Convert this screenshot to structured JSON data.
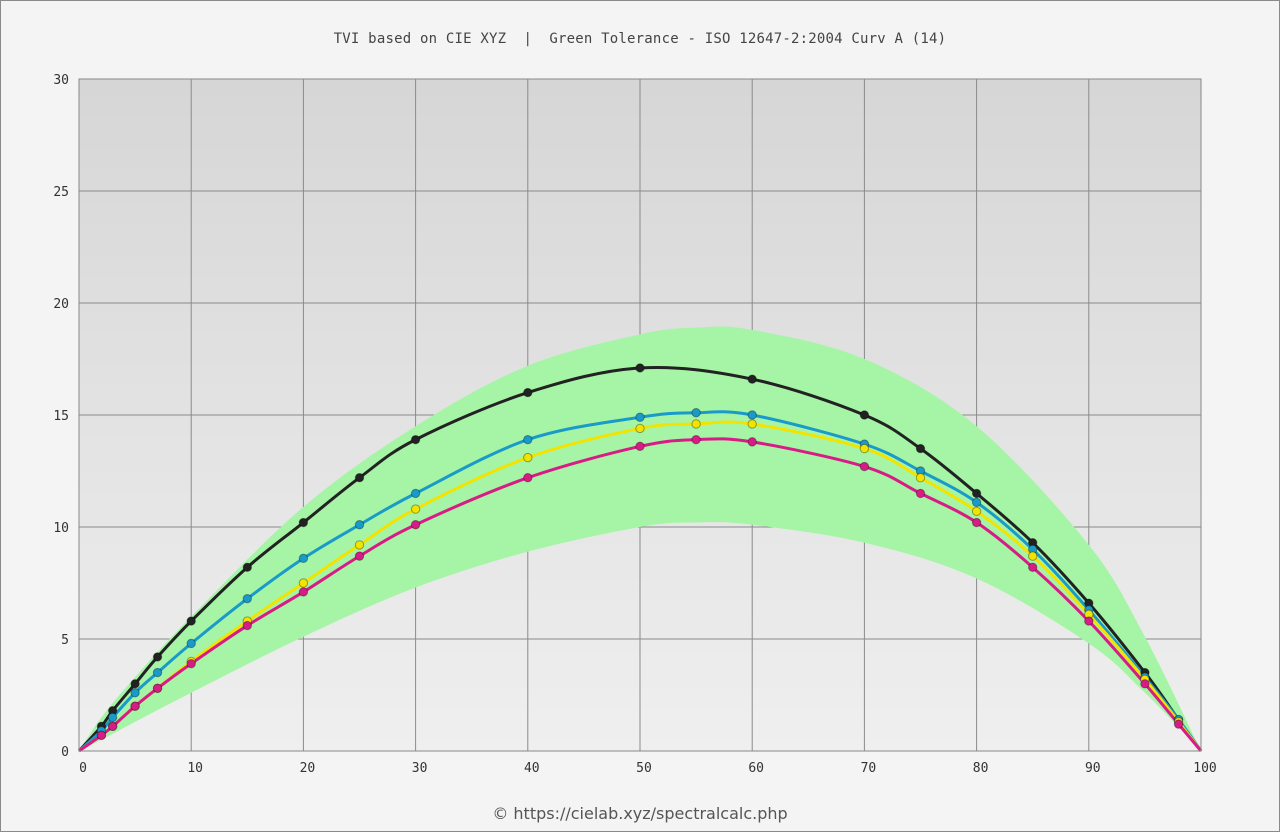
{
  "header": {
    "title": "TVI based on CIE XYZ  |  Green Tolerance - ISO 12647-2:2004 Curv A (14)"
  },
  "footer": {
    "copyright": "© https://cielab.xyz/spectralcalc.php"
  },
  "chart_data": {
    "type": "line",
    "title": "TVI based on CIE XYZ  |  Green Tolerance - ISO 12647-2:2004 Curv A (14)",
    "xlabel": "",
    "ylabel": "",
    "xlim": [
      0,
      100
    ],
    "ylim": [
      0,
      30
    ],
    "x_ticks": [
      "0",
      "10",
      "20",
      "30",
      "40",
      "50",
      "60",
      "70",
      "80",
      "90",
      "100"
    ],
    "y_ticks": [
      "0",
      "5",
      "10",
      "15",
      "20",
      "25",
      "30"
    ],
    "grid": true,
    "legend": "none",
    "colors": {
      "plot_top": "#d6d6d6",
      "plot_bottom": "#efefef",
      "grid": "#8a8a8a",
      "tolerance_band": "#a6f5a6"
    },
    "tolerance_band": {
      "x": [
        0,
        2,
        5,
        10,
        20,
        30,
        40,
        50,
        55,
        60,
        70,
        80,
        90,
        95,
        100
      ],
      "upper": [
        0,
        1.5,
        3.3,
        6.0,
        10.9,
        14.5,
        17.2,
        18.6,
        18.9,
        18.8,
        17.5,
        14.5,
        9.2,
        5.1,
        0
      ],
      "lower": [
        0,
        0.5,
        1.3,
        2.6,
        5.1,
        7.3,
        8.9,
        10.0,
        10.2,
        10.1,
        9.3,
        7.7,
        4.8,
        2.6,
        0
      ]
    },
    "series": [
      {
        "color": "#222222",
        "x": [
          0,
          2,
          3,
          5,
          7,
          10,
          15,
          20,
          25,
          30,
          40,
          50,
          60,
          70,
          75,
          80,
          85,
          90,
          95,
          98,
          100
        ],
        "values": [
          0,
          1.1,
          1.8,
          3.0,
          4.2,
          5.8,
          8.2,
          10.2,
          12.2,
          13.9,
          16.0,
          17.1,
          16.6,
          15.0,
          13.5,
          11.5,
          9.3,
          6.6,
          3.5,
          1.4,
          0
        ]
      },
      {
        "color": "#1a9ac8",
        "x": [
          0,
          2,
          3,
          5,
          7,
          10,
          15,
          20,
          25,
          30,
          40,
          50,
          55,
          60,
          70,
          75,
          80,
          85,
          90,
          95,
          98,
          100
        ],
        "values": [
          0,
          0.9,
          1.5,
          2.6,
          3.5,
          4.8,
          6.8,
          8.6,
          10.1,
          11.5,
          13.9,
          14.9,
          15.1,
          15.0,
          13.7,
          12.5,
          11.1,
          9.0,
          6.3,
          3.3,
          1.4,
          0
        ]
      },
      {
        "color": "#f2e300",
        "x": [
          0,
          2,
          3,
          5,
          7,
          10,
          15,
          20,
          25,
          30,
          40,
          50,
          55,
          60,
          70,
          75,
          80,
          85,
          90,
          95,
          98,
          100
        ],
        "values": [
          0,
          0.7,
          1.1,
          2.0,
          2.8,
          4.0,
          5.8,
          7.5,
          9.2,
          10.8,
          13.1,
          14.4,
          14.6,
          14.6,
          13.5,
          12.2,
          10.7,
          8.7,
          6.1,
          3.2,
          1.3,
          0
        ]
      },
      {
        "color": "#d81b86",
        "x": [
          0,
          2,
          3,
          5,
          7,
          10,
          15,
          20,
          25,
          30,
          40,
          50,
          55,
          60,
          70,
          75,
          80,
          85,
          90,
          95,
          98,
          100
        ],
        "values": [
          0,
          0.7,
          1.1,
          2.0,
          2.8,
          3.9,
          5.6,
          7.1,
          8.7,
          10.1,
          12.2,
          13.6,
          13.9,
          13.8,
          12.7,
          11.5,
          10.2,
          8.2,
          5.8,
          3.0,
          1.2,
          0
        ]
      }
    ]
  }
}
